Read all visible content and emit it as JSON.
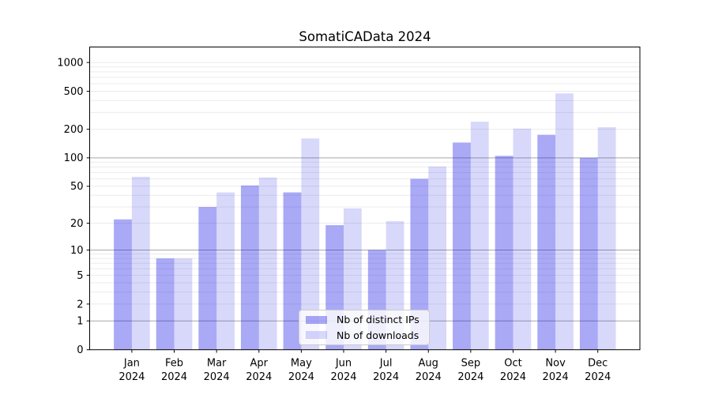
{
  "chart_data": {
    "type": "bar",
    "title": "SomatiCAData 2024",
    "categories": [
      "Jan",
      "Feb",
      "Mar",
      "Apr",
      "May",
      "Jun",
      "Jul",
      "Aug",
      "Sep",
      "Oct",
      "Nov",
      "Dec"
    ],
    "category_sublabel": "2024",
    "series": [
      {
        "name": "Nb of distinct IPs",
        "color": "rgba(10,10,230,0.35)",
        "values": [
          22,
          8,
          30,
          51,
          43,
          19,
          10,
          60,
          145,
          105,
          175,
          100
        ]
      },
      {
        "name": "Nb of downloads",
        "color": "rgba(10,10,230,0.16)",
        "values": [
          63,
          8,
          43,
          62,
          160,
          29,
          21,
          81,
          240,
          203,
          475,
          210
        ]
      }
    ],
    "y_scale": "log10(1+y)",
    "y_ticks": [
      0,
      1,
      2,
      5,
      10,
      20,
      50,
      100,
      200,
      500,
      1000
    ],
    "emphasized_gridlines": [
      1,
      10,
      100
    ],
    "ylim": [
      0,
      1450
    ],
    "grid": "on",
    "legend_position": "lower center",
    "colors": {
      "axis": "#000000",
      "grid_minor": "#ebebeb",
      "grid_major": "#a8a8a8",
      "background": "#ffffff"
    }
  }
}
